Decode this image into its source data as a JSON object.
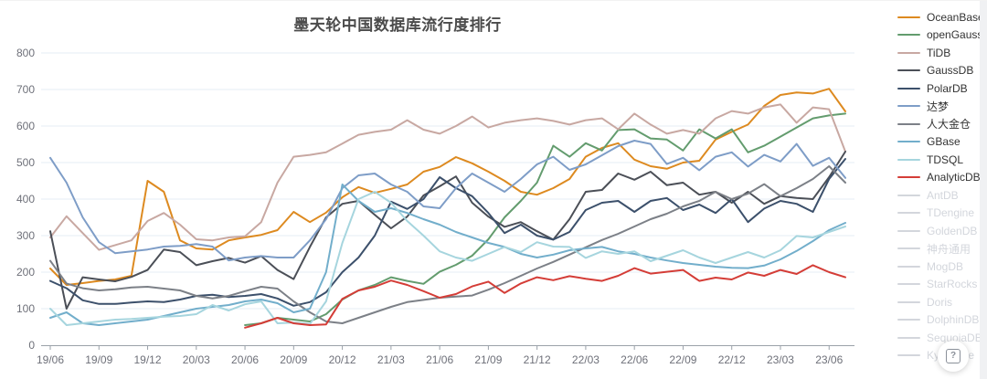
{
  "chart_data": {
    "type": "line",
    "title": "墨天轮中国数据库流行度排行",
    "xlabel": "",
    "ylabel": "",
    "ylim": [
      0,
      800
    ],
    "y_ticks": [
      0,
      100,
      200,
      300,
      400,
      500,
      600,
      700,
      800
    ],
    "grid": true,
    "legend_position": "right",
    "x_monthly_from": "19/06",
    "x_monthly_to": "23/07",
    "n_points": 50,
    "x_tick_every": 3,
    "x_tick_labels": [
      "19/06",
      "19/09",
      "19/12",
      "20/03",
      "20/06",
      "20/09",
      "20/12",
      "21/03",
      "21/06",
      "21/09",
      "21/12",
      "22/03",
      "22/06",
      "22/09",
      "22/12",
      "23/03",
      "23/06"
    ],
    "series": [
      {
        "name": "OceanBase",
        "color": "#dd8a20",
        "values": [
          210,
          165,
          170,
          176,
          180,
          190,
          450,
          420,
          287,
          265,
          262,
          287,
          295,
          302,
          315,
          365,
          337,
          363,
          405,
          433,
          417,
          428,
          440,
          475,
          488,
          515,
          498,
          475,
          450,
          420,
          412,
          430,
          455,
          516,
          540,
          553,
          508,
          490,
          483,
          500,
          505,
          563,
          584,
          604,
          655,
          685,
          692,
          689,
          702,
          640
        ]
      },
      {
        "name": "openGauss",
        "color": "#639c6e",
        "values": [
          null,
          null,
          null,
          null,
          null,
          null,
          null,
          null,
          null,
          null,
          null,
          null,
          55,
          60,
          75,
          70,
          65,
          85,
          125,
          150,
          165,
          186,
          176,
          168,
          201,
          220,
          245,
          290,
          350,
          395,
          445,
          546,
          516,
          553,
          533,
          589,
          591,
          566,
          563,
          533,
          591,
          566,
          591,
          528,
          546,
          571,
          596,
          621,
          629,
          634
        ]
      },
      {
        "name": "TiDB",
        "color": "#c8a8a2",
        "values": [
          295,
          353,
          307,
          261,
          274,
          287,
          340,
          362,
          330,
          290,
          287,
          295,
          298,
          337,
          445,
          516,
          521,
          528,
          552,
          576,
          584,
          590,
          616,
          590,
          579,
          600,
          626,
          596,
          609,
          616,
          621,
          614,
          604,
          616,
          621,
          591,
          634,
          604,
          579,
          589,
          579,
          621,
          641,
          634,
          651,
          659,
          609,
          651,
          646,
          530
        ]
      },
      {
        "name": "GaussDB",
        "color": "#4b4f57",
        "values": [
          312,
          100,
          186,
          180,
          175,
          187,
          206,
          262,
          255,
          219,
          230,
          239,
          226,
          244,
          206,
          181,
          269,
          350,
          387,
          395,
          357,
          320,
          352,
          410,
          435,
          462,
          390,
          352,
          324,
          337,
          312,
          289,
          345,
          420,
          425,
          470,
          453,
          475,
          438,
          445,
          412,
          420,
          390,
          420,
          387,
          408,
          403,
          400,
          460,
          530
        ]
      },
      {
        "name": "PolarDB",
        "color": "#3c506b",
        "values": [
          176,
          156,
          123,
          113,
          113,
          117,
          120,
          118,
          125,
          135,
          138,
          132,
          135,
          140,
          128,
          108,
          118,
          145,
          200,
          240,
          300,
          393,
          373,
          400,
          460,
          430,
          408,
          362,
          307,
          330,
          300,
          289,
          310,
          370,
          390,
          395,
          365,
          395,
          403,
          370,
          385,
          362,
          400,
          337,
          374,
          395,
          387,
          365,
          455,
          510
        ]
      },
      {
        "name": "达梦",
        "color": "#7e9dc7",
        "values": [
          513,
          445,
          350,
          282,
          252,
          257,
          262,
          270,
          272,
          277,
          270,
          232,
          240,
          244,
          240,
          240,
          287,
          345,
          430,
          465,
          470,
          440,
          420,
          380,
          375,
          430,
          470,
          445,
          420,
          455,
          495,
          516,
          480,
          495,
          520,
          545,
          560,
          551,
          496,
          513,
          479,
          516,
          528,
          489,
          521,
          503,
          551,
          491,
          513,
          458
        ]
      },
      {
        "name": "人大金仓",
        "color": "#7c8087",
        "values": [
          231,
          169,
          156,
          150,
          153,
          158,
          160,
          155,
          150,
          135,
          128,
          135,
          148,
          160,
          155,
          120,
          90,
          65,
          60,
          75,
          90,
          105,
          118,
          124,
          130,
          133,
          136,
          152,
          170,
          190,
          210,
          228,
          248,
          268,
          288,
          305,
          325,
          345,
          360,
          380,
          395,
          420,
          400,
          415,
          441,
          408,
          430,
          455,
          490,
          445
        ]
      },
      {
        "name": "GBase",
        "color": "#72aecb",
        "values": [
          75,
          90,
          60,
          55,
          60,
          65,
          70,
          80,
          90,
          100,
          105,
          110,
          120,
          125,
          115,
          90,
          100,
          200,
          440,
          395,
          365,
          375,
          362,
          345,
          330,
          310,
          295,
          280,
          269,
          250,
          240,
          248,
          260,
          265,
          269,
          257,
          250,
          240,
          232,
          225,
          220,
          215,
          212,
          211,
          218,
          235,
          258,
          285,
          315,
          335
        ]
      },
      {
        "name": "TDSQL",
        "color": "#a6d5de",
        "values": [
          100,
          55,
          60,
          65,
          70,
          72,
          75,
          78,
          80,
          85,
          110,
          95,
          112,
          120,
          60,
          62,
          58,
          120,
          280,
          400,
          420,
          390,
          340,
          300,
          257,
          240,
          231,
          250,
          269,
          255,
          282,
          270,
          269,
          239,
          257,
          250,
          257,
          230,
          245,
          260,
          240,
          225,
          240,
          255,
          240,
          260,
          299,
          295,
          310,
          325
        ]
      },
      {
        "name": "AnalyticDB",
        "color": "#d43d37",
        "values": [
          null,
          null,
          null,
          null,
          null,
          null,
          null,
          null,
          null,
          null,
          null,
          null,
          48,
          60,
          75,
          60,
          55,
          57,
          127,
          150,
          160,
          177,
          165,
          148,
          130,
          140,
          161,
          174,
          143,
          169,
          186,
          178,
          189,
          182,
          176,
          190,
          211,
          196,
          201,
          206,
          176,
          185,
          180,
          199,
          190,
          206,
          195,
          219,
          200,
          186
        ]
      }
    ],
    "disabled_series": [
      "AntDB",
      "TDengine",
      "GoldenDB",
      "神舟通用",
      "MogDB",
      "StarRocks",
      "Doris",
      "DolphinDB",
      "SequoiaDB",
      "Kyligence"
    ]
  },
  "legend": {
    "inactive_color": "#d3d6dc",
    "items": [
      {
        "label": "OceanBase",
        "color": "#dd8a20",
        "active": true
      },
      {
        "label": "openGauss",
        "color": "#639c6e",
        "active": true
      },
      {
        "label": "TiDB",
        "color": "#c8a8a2",
        "active": true
      },
      {
        "label": "GaussDB",
        "color": "#4b4f57",
        "active": true
      },
      {
        "label": "PolarDB",
        "color": "#3c506b",
        "active": true
      },
      {
        "label": "达梦",
        "color": "#7e9dc7",
        "active": true
      },
      {
        "label": "人大金仓",
        "color": "#7c8087",
        "active": true
      },
      {
        "label": "GBase",
        "color": "#72aecb",
        "active": true
      },
      {
        "label": "TDSQL",
        "color": "#a6d5de",
        "active": true
      },
      {
        "label": "AnalyticDB",
        "color": "#d43d37",
        "active": true
      },
      {
        "label": "AntDB",
        "color": null,
        "active": false
      },
      {
        "label": "TDengine",
        "color": null,
        "active": false
      },
      {
        "label": "GoldenDB",
        "color": null,
        "active": false
      },
      {
        "label": "神舟通用",
        "color": null,
        "active": false
      },
      {
        "label": "MogDB",
        "color": null,
        "active": false
      },
      {
        "label": "StarRocks",
        "color": null,
        "active": false
      },
      {
        "label": "Doris",
        "color": null,
        "active": false
      },
      {
        "label": "DolphinDB",
        "color": null,
        "active": false
      },
      {
        "label": "SequoiaDB",
        "color": null,
        "active": false
      },
      {
        "label": "Kyligence",
        "color": null,
        "active": false
      }
    ]
  },
  "help_button": {
    "glyph": "?"
  },
  "style": {
    "grid_color": "#e6edf5",
    "axis_color": "#9aa1a9",
    "axis_text_color": "#6e7079"
  }
}
